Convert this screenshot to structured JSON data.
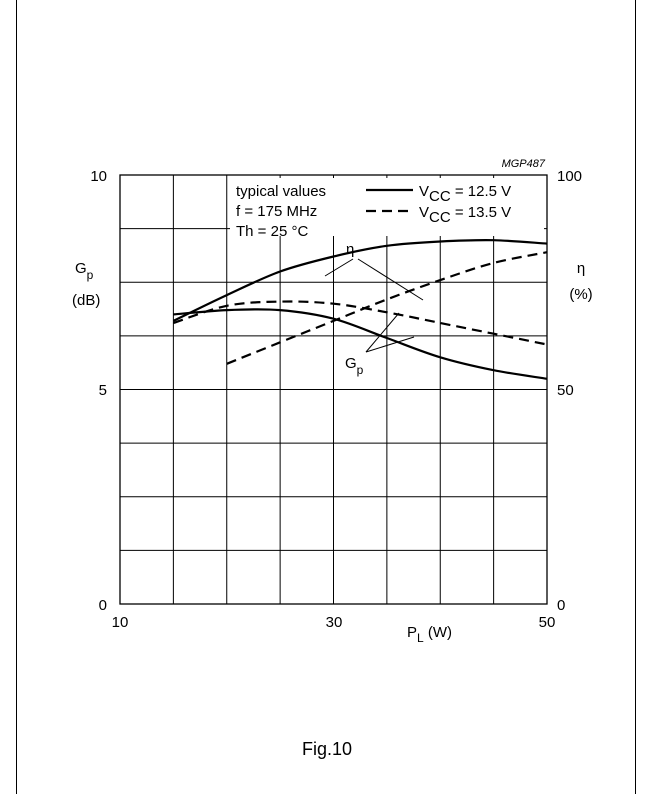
{
  "figure_code": "MGP487",
  "caption": "Fig.10",
  "legend": {
    "conditions": [
      "typical values",
      "f = 175 MHz",
      "Th = 25 °C"
    ],
    "solid_main": "V",
    "solid_sub": "CC",
    "solid_rest": " = 12.5 V",
    "dashed_main": "V",
    "dashed_sub": "CC",
    "dashed_rest": " = 13.5 V"
  },
  "axes": {
    "x_label_main": "P",
    "x_label_sub": "L",
    "x_label_unit": " (W)",
    "y_left_main": "G",
    "y_left_sub": "p",
    "y_left_unit": "(dB)",
    "y_right_main": "η",
    "y_right_unit": "(%)",
    "x_ticks": [
      "10",
      "30",
      "50"
    ],
    "y_left_ticks": [
      "0",
      "5",
      "10"
    ],
    "y_right_ticks": [
      "0",
      "50",
      "100"
    ]
  },
  "annotations": {
    "eta": "η",
    "gp_main": "G",
    "gp_sub": "p"
  },
  "chart_data": {
    "type": "line",
    "xlabel": "PL (W)",
    "ylabel_left": "Gp (dB)",
    "ylabel_right": "η (%)",
    "xlim": [
      10,
      50
    ],
    "ylim_left": [
      0,
      10
    ],
    "ylim_right": [
      0,
      100
    ],
    "grid": true,
    "series": [
      {
        "name": "VCC = 12.5 V",
        "quantity": "Gp",
        "axis": "left",
        "style": "solid",
        "x": [
          15,
          20,
          25,
          30,
          35,
          40,
          45,
          50
        ],
        "y": [
          6.75,
          6.85,
          6.85,
          6.65,
          6.2,
          5.75,
          5.45,
          5.25
        ]
      },
      {
        "name": "VCC = 13.5 V",
        "quantity": "Gp",
        "axis": "left",
        "style": "dashed",
        "x": [
          15,
          20,
          25,
          30,
          35,
          40,
          45,
          50
        ],
        "y": [
          6.55,
          6.95,
          7.05,
          7.0,
          6.8,
          6.55,
          6.3,
          6.05
        ]
      },
      {
        "name": "VCC = 12.5 V",
        "quantity": "η",
        "axis": "right",
        "style": "solid",
        "x": [
          15,
          20,
          25,
          30,
          35,
          40,
          45,
          50
        ],
        "y": [
          66,
          72,
          77.5,
          81,
          83.5,
          84.5,
          84.8,
          84
        ]
      },
      {
        "name": "VCC = 13.5 V",
        "quantity": "η",
        "axis": "right",
        "style": "dashed",
        "x": [
          20,
          25,
          30,
          35,
          40,
          45,
          50
        ],
        "y": [
          56,
          61,
          66,
          71,
          75.5,
          79.5,
          82
        ]
      }
    ]
  }
}
